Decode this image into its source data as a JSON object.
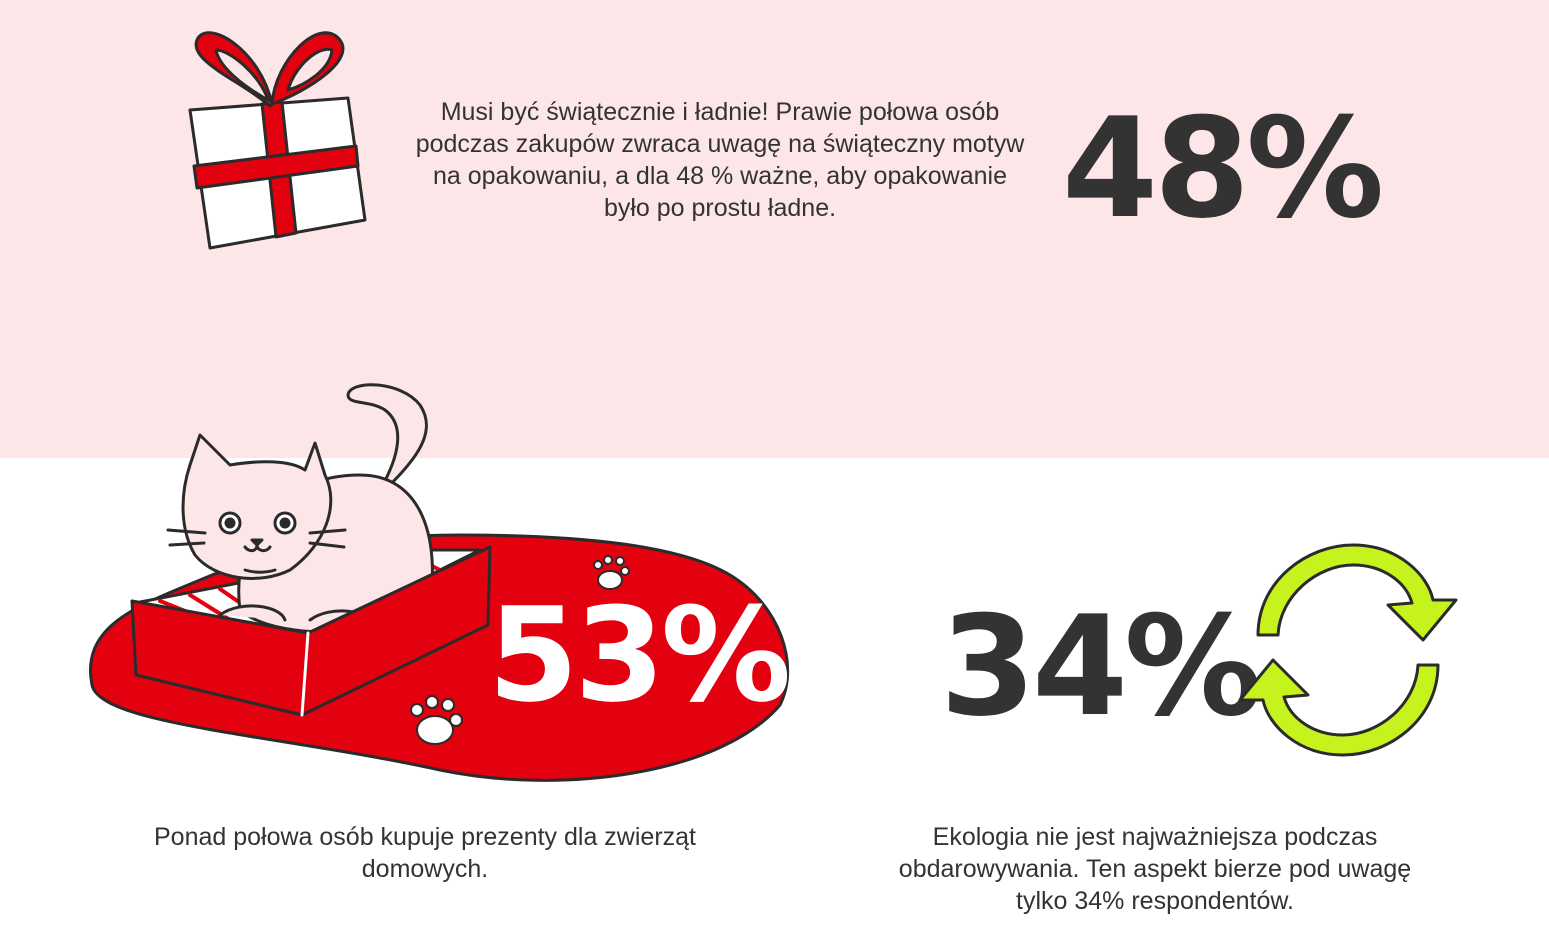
{
  "gift_section": {
    "text": "Musi być świątecznie i ładnie! Prawie połowa osób podczas zakupów zwraca uwagę na świąteczny motyw na opakowaniu, a dla 48 % ważne, aby opakowanie było po prostu ładne.",
    "stat": "48%",
    "icon": "gift-icon",
    "band_color": "#fde6e8",
    "accent_color": "#e3000f"
  },
  "pets_section": {
    "stat": "53%",
    "caption": "Ponad połowa osób kupuje prezenty dla zwierząt domowych.",
    "icon": "cat-in-bed-icon",
    "accent_color": "#e3000f"
  },
  "eco_section": {
    "stat": "34%",
    "caption": "Ekologia nie jest najważniejsza podczas obdarowywania. Ten aspekt bierze pod uwagę tylko 34% respondentów.",
    "icon": "recycle-arrows-icon",
    "accent_color": "#c6f21e"
  }
}
